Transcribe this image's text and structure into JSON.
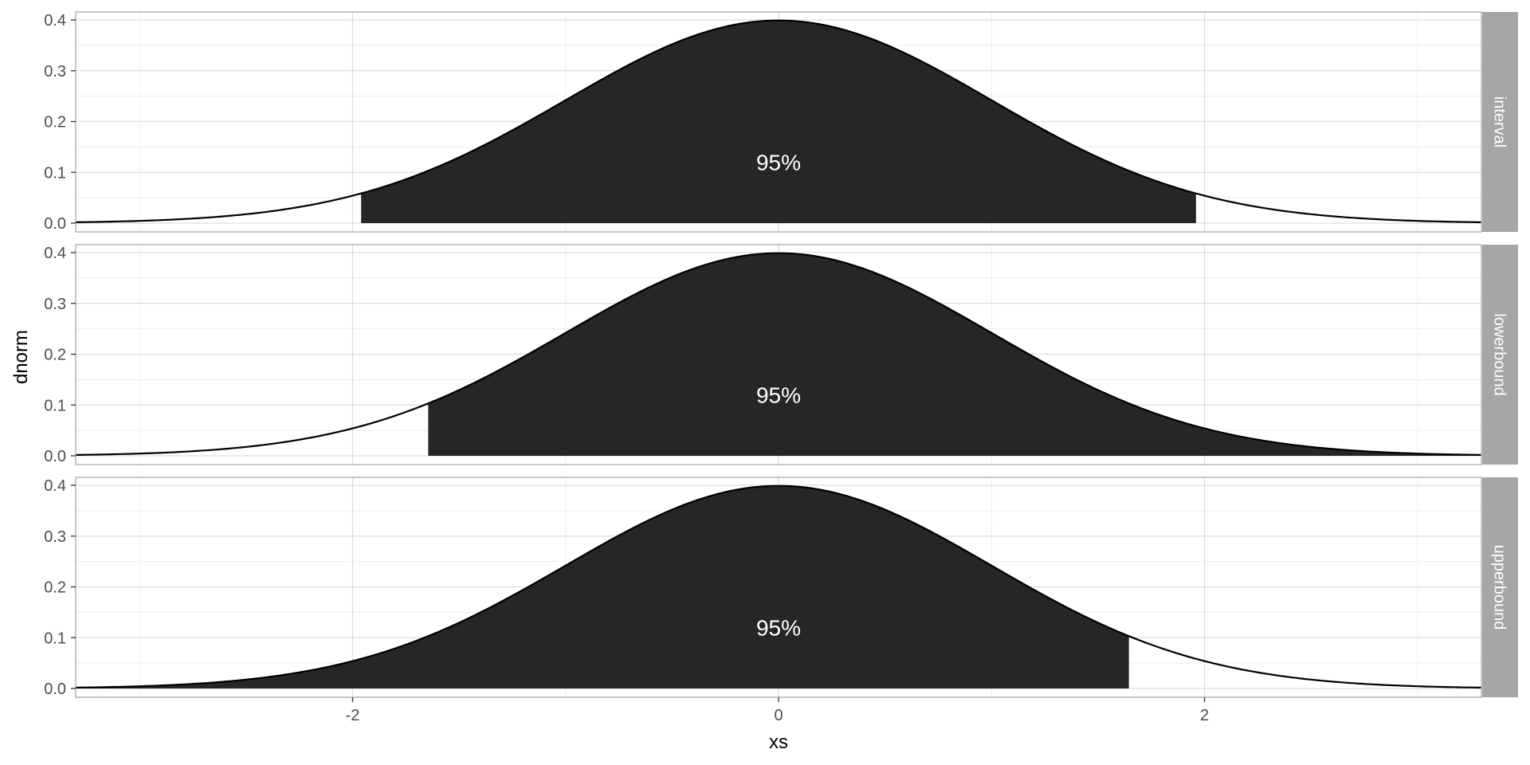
{
  "chart_data": {
    "type": "area",
    "xlabel": "xs",
    "ylabel": "dnorm",
    "xlim": [
      -3.3,
      3.3
    ],
    "ylim": [
      0.0,
      0.4
    ],
    "x_ticks": [
      -2,
      0,
      2
    ],
    "x_tick_labels": [
      "-2",
      "0",
      "2"
    ],
    "y_ticks": [
      0.0,
      0.1,
      0.2,
      0.3,
      0.4
    ],
    "y_tick_labels": [
      "0.0",
      "0.1",
      "0.2",
      "0.3",
      "0.4"
    ],
    "grid": true,
    "curve": "standard normal density",
    "colors": {
      "fill": "#262626",
      "line": "#000000",
      "grid_major": "#dddddd",
      "grid_minor": "#eeeeee",
      "panel_border": "#aaaaaa",
      "strip_background": "#a6a6a6",
      "strip_text": "#ffffff"
    },
    "panels": [
      {
        "label": "interval",
        "shade_from": -1.96,
        "shade_to": 1.96,
        "annotation": "95%",
        "annotation_x": 0,
        "annotation_y": 0.12
      },
      {
        "label": "lowerbound",
        "shade_from": -1.645,
        "shade_to": 3.3,
        "annotation": "95%",
        "annotation_x": 0,
        "annotation_y": 0.12
      },
      {
        "label": "upperbound",
        "shade_from": -3.3,
        "shade_to": 1.645,
        "annotation": "95%",
        "annotation_x": 0,
        "annotation_y": 0.12
      }
    ]
  }
}
